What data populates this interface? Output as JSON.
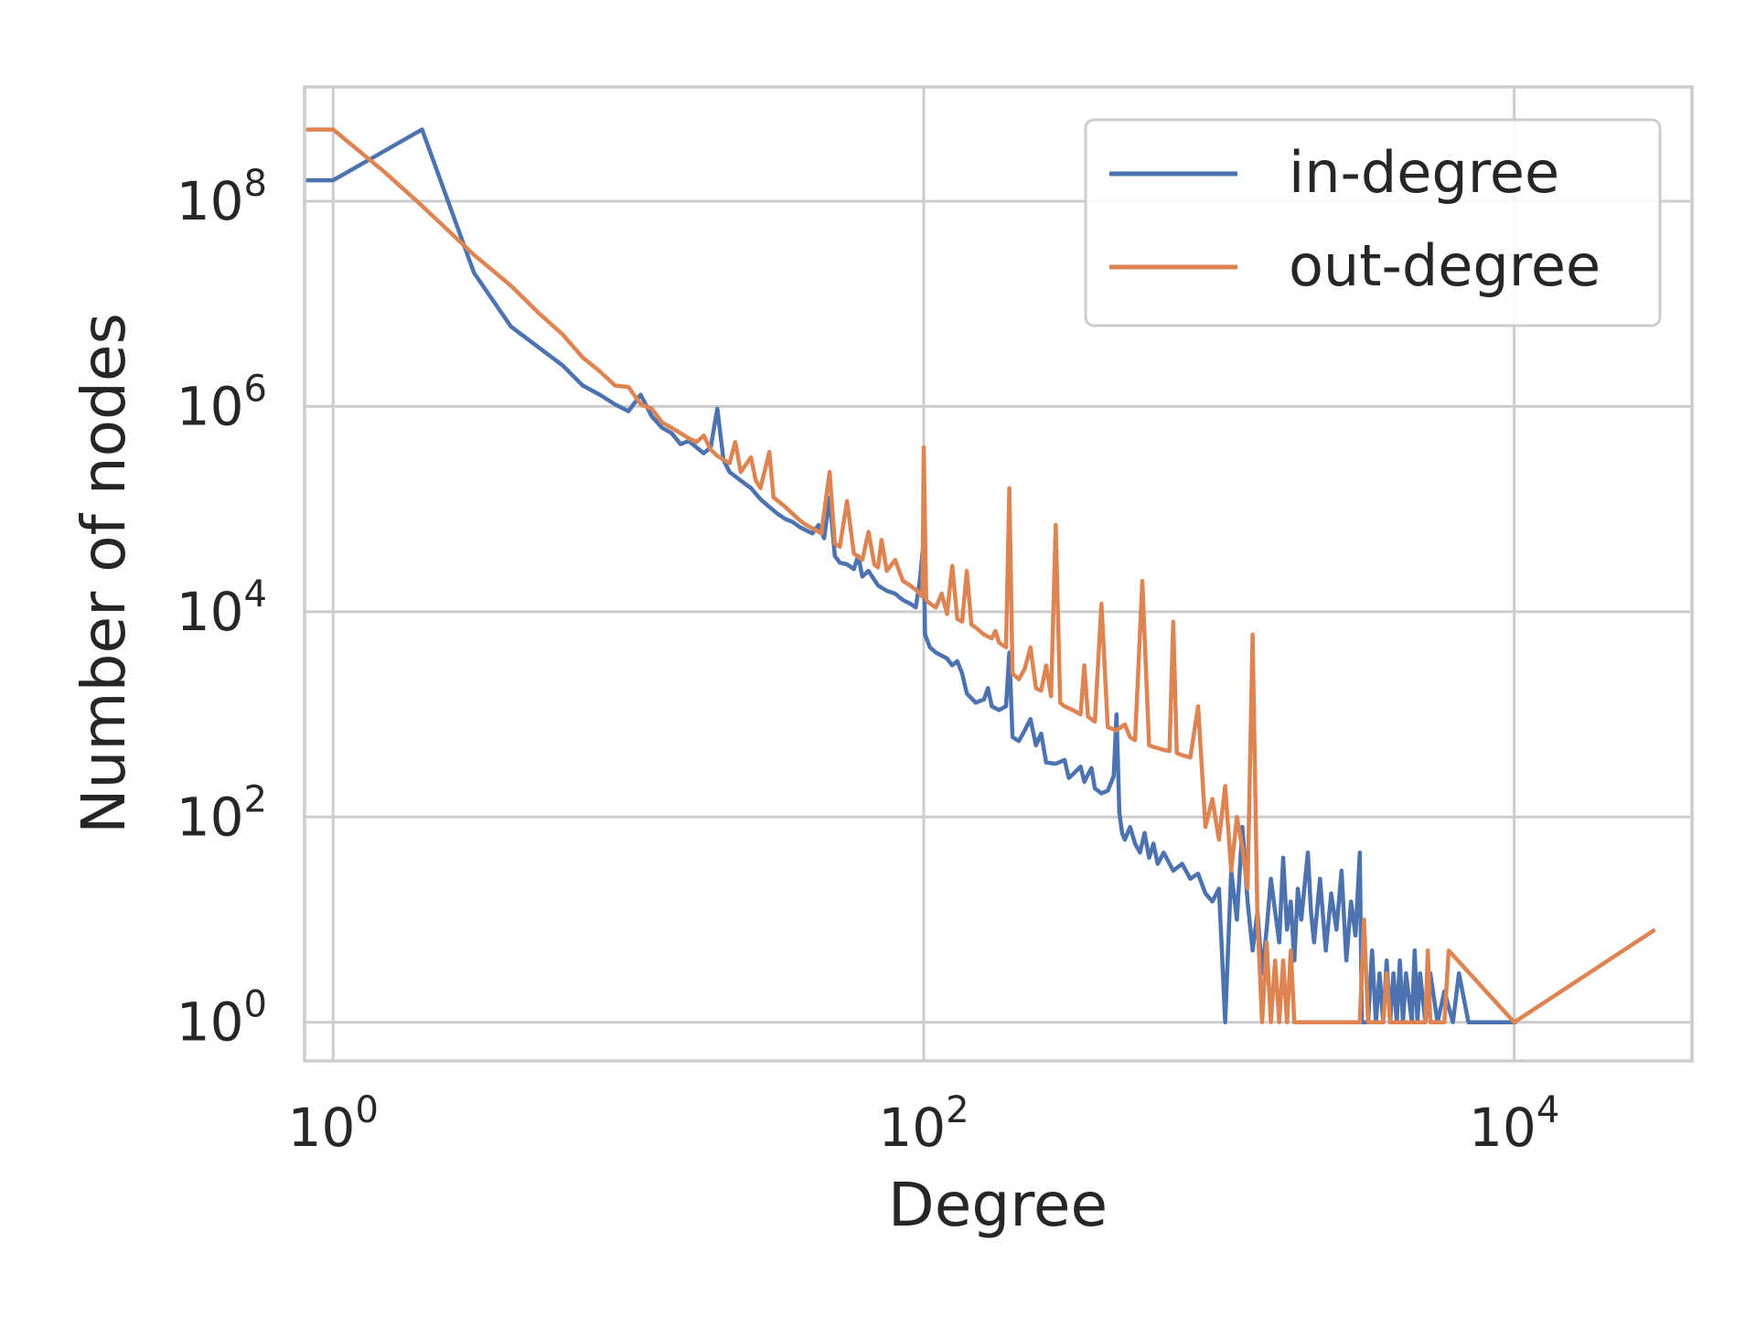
{
  "chart_data": {
    "type": "line",
    "xlabel": "Degree",
    "ylabel": "Number of nodes",
    "x_scale": "log",
    "y_scale": "log",
    "xlim": [
      0.8,
      40000
    ],
    "ylim": [
      0.42,
      1300000000.0
    ],
    "x_ticks": [
      {
        "value": 1,
        "base": "10",
        "exp": "0"
      },
      {
        "value": 100,
        "base": "10",
        "exp": "2"
      },
      {
        "value": 10000,
        "base": "10",
        "exp": "4"
      }
    ],
    "y_ticks": [
      {
        "value": 1,
        "base": "10",
        "exp": "0"
      },
      {
        "value": 100,
        "base": "10",
        "exp": "2"
      },
      {
        "value": 10000,
        "base": "10",
        "exp": "4"
      },
      {
        "value": 1000000,
        "base": "10",
        "exp": "6"
      },
      {
        "value": 100000000,
        "base": "10",
        "exp": "8"
      }
    ],
    "grid": true,
    "legend_position": "top-right",
    "series": [
      {
        "name": "in-degree",
        "color": "#4c72b0",
        "points": [
          [
            0.8,
            160000000.0
          ],
          [
            1,
            160000000.0
          ],
          [
            2,
            500000000.0
          ],
          [
            3,
            20000000.0
          ],
          [
            4,
            6000000.0
          ],
          [
            6,
            2500000.0
          ],
          [
            7,
            1600000.0
          ],
          [
            8,
            1300000.0
          ],
          [
            9,
            1050000.0
          ],
          [
            10,
            900000.0
          ],
          [
            11,
            1300000.0
          ],
          [
            12,
            800000.0
          ],
          [
            13,
            620000.0
          ],
          [
            14,
            550000.0
          ],
          [
            15,
            430000.0
          ],
          [
            16,
            460000.0
          ],
          [
            17,
            400000.0
          ],
          [
            18,
            350000.0
          ],
          [
            19,
            400000.0
          ],
          [
            20,
            950000.0
          ],
          [
            21,
            300000.0
          ],
          [
            22,
            230000.0
          ],
          [
            24,
            190000.0
          ],
          [
            26,
            160000.0
          ],
          [
            28,
            125000.0
          ],
          [
            30,
            105000.0
          ],
          [
            32,
            90000.0
          ],
          [
            34,
            80000.0
          ],
          [
            36,
            75000.0
          ],
          [
            38,
            67000.0
          ],
          [
            40,
            62000.0
          ],
          [
            42,
            58000.0
          ],
          [
            44,
            70000.0
          ],
          [
            46,
            52000.0
          ],
          [
            48,
            130000.0
          ],
          [
            50,
            35000.0
          ],
          [
            52,
            30000.0
          ],
          [
            55,
            29000.0
          ],
          [
            58,
            26000.0
          ],
          [
            60,
            35000.0
          ],
          [
            62,
            22000.0
          ],
          [
            65,
            25000.0
          ],
          [
            70,
            18000.0
          ],
          [
            75,
            16000.0
          ],
          [
            80,
            15000.0
          ],
          [
            85,
            13000.0
          ],
          [
            90,
            12000.0
          ],
          [
            94,
            11000.0
          ],
          [
            97,
            20000.0
          ],
          [
            100,
            50000.0
          ],
          [
            101,
            6000.0
          ],
          [
            105,
            4500.0
          ],
          [
            110,
            4000.0
          ],
          [
            120,
            3500.0
          ],
          [
            125,
            3000.0
          ],
          [
            130,
            3300.0
          ],
          [
            135,
            2500.0
          ],
          [
            140,
            1600.0
          ],
          [
            150,
            1300.0
          ],
          [
            160,
            1400.0
          ],
          [
            165,
            1800.0
          ],
          [
            170,
            1200.0
          ],
          [
            180,
            1100.0
          ],
          [
            190,
            1200.0
          ],
          [
            195,
            4000.0
          ],
          [
            200,
            600
          ],
          [
            210,
            550
          ],
          [
            220,
            700
          ],
          [
            230,
            900
          ],
          [
            240,
            500
          ],
          [
            250,
            650
          ],
          [
            260,
            340
          ],
          [
            280,
            330
          ],
          [
            300,
            360
          ],
          [
            310,
            240
          ],
          [
            320,
            260
          ],
          [
            340,
            310
          ],
          [
            350,
            220
          ],
          [
            360,
            260
          ],
          [
            370,
            300
          ],
          [
            380,
            190
          ],
          [
            400,
            170
          ],
          [
            420,
            180
          ],
          [
            440,
            250
          ],
          [
            450,
            1000
          ],
          [
            460,
            110
          ],
          [
            470,
            70
          ],
          [
            480,
            60
          ],
          [
            500,
            80
          ],
          [
            520,
            55
          ],
          [
            540,
            45
          ],
          [
            560,
            70
          ],
          [
            580,
            40
          ],
          [
            600,
            55
          ],
          [
            620,
            35
          ],
          [
            650,
            45
          ],
          [
            700,
            30
          ],
          [
            750,
            35
          ],
          [
            800,
            25
          ],
          [
            850,
            28
          ],
          [
            900,
            18
          ],
          [
            950,
            15
          ],
          [
            1000,
            20
          ],
          [
            1050,
            1
          ],
          [
            1100,
            30
          ],
          [
            1150,
            10
          ],
          [
            1200,
            80
          ],
          [
            1250,
            15
          ],
          [
            1300,
            5
          ],
          [
            1350,
            12
          ],
          [
            1400,
            3
          ],
          [
            1450,
            8
          ],
          [
            1500,
            25
          ],
          [
            1550,
            12
          ],
          [
            1600,
            6
          ],
          [
            1650,
            40
          ],
          [
            1700,
            8
          ],
          [
            1750,
            15
          ],
          [
            1800,
            4
          ],
          [
            1850,
            20
          ],
          [
            1900,
            10
          ],
          [
            2000,
            45
          ],
          [
            2050,
            12
          ],
          [
            2100,
            6
          ],
          [
            2200,
            25
          ],
          [
            2300,
            5
          ],
          [
            2400,
            18
          ],
          [
            2500,
            8
          ],
          [
            2600,
            30
          ],
          [
            2700,
            4
          ],
          [
            2800,
            15
          ],
          [
            2900,
            7
          ],
          [
            3000,
            45
          ],
          [
            3050,
            1
          ],
          [
            3200,
            1
          ],
          [
            3300,
            5
          ],
          [
            3400,
            1
          ],
          [
            3500,
            3
          ],
          [
            3600,
            1
          ],
          [
            3700,
            4
          ],
          [
            3800,
            1
          ],
          [
            3900,
            3
          ],
          [
            4000,
            1
          ],
          [
            4100,
            4
          ],
          [
            4200,
            1
          ],
          [
            4300,
            3
          ],
          [
            4500,
            1
          ],
          [
            4600,
            5
          ],
          [
            4700,
            1
          ],
          [
            4800,
            3
          ],
          [
            5000,
            1
          ],
          [
            5200,
            3
          ],
          [
            5500,
            1
          ],
          [
            5800,
            2
          ],
          [
            6200,
            1
          ],
          [
            6500,
            3
          ],
          [
            7000,
            1
          ],
          [
            8000,
            1
          ],
          [
            10000,
            1
          ],
          [
            10200,
            1
          ]
        ]
      },
      {
        "name": "out-degree",
        "color": "#dd8452",
        "points": [
          [
            0.8,
            500000000.0
          ],
          [
            1,
            500000000.0
          ],
          [
            1.5,
            190000000.0
          ],
          [
            2,
            90000000.0
          ],
          [
            3,
            30000000.0
          ],
          [
            4,
            15000000.0
          ],
          [
            5,
            8000000.0
          ],
          [
            6,
            5000000.0
          ],
          [
            7,
            3000000.0
          ],
          [
            8,
            2200000.0
          ],
          [
            9,
            1600000.0
          ],
          [
            10,
            1550000.0
          ],
          [
            11,
            1050000.0
          ],
          [
            12,
            950000.0
          ],
          [
            13,
            700000.0
          ],
          [
            14,
            620000.0
          ],
          [
            15,
            550000.0
          ],
          [
            16,
            490000.0
          ],
          [
            17,
            450000.0
          ],
          [
            18,
            520000.0
          ],
          [
            19,
            380000.0
          ],
          [
            20,
            330000.0
          ],
          [
            22,
            280000.0
          ],
          [
            23,
            450000.0
          ],
          [
            24,
            230000.0
          ],
          [
            26,
            320000.0
          ],
          [
            27,
            190000.0
          ],
          [
            28,
            160000.0
          ],
          [
            30,
            360000.0
          ],
          [
            31,
            130000.0
          ],
          [
            34,
            105000.0
          ],
          [
            36,
            90000.0
          ],
          [
            38,
            78000.0
          ],
          [
            40,
            70000.0
          ],
          [
            42,
            65000.0
          ],
          [
            45,
            58000.0
          ],
          [
            48,
            230000.0
          ],
          [
            50,
            46000.0
          ],
          [
            52,
            43000.0
          ],
          [
            55,
            120000.0
          ],
          [
            58,
            37000.0
          ],
          [
            62,
            32000.0
          ],
          [
            65,
            60000.0
          ],
          [
            68,
            29000.0
          ],
          [
            70,
            27000.0
          ],
          [
            72,
            50000.0
          ],
          [
            75,
            25000.0
          ],
          [
            80,
            32000.0
          ],
          [
            85,
            20000.0
          ],
          [
            90,
            18000.0
          ],
          [
            95,
            16000.0
          ],
          [
            99,
            14000.0
          ],
          [
            100,
            400000.0
          ],
          [
            102,
            13000.0
          ],
          [
            105,
            12000.0
          ],
          [
            110,
            11000.0
          ],
          [
            115,
            15000.0
          ],
          [
            120,
            9500.0
          ],
          [
            125,
            28000.0
          ],
          [
            130,
            8500.0
          ],
          [
            135,
            8000.0
          ],
          [
            140,
            25000.0
          ],
          [
            145,
            7500.0
          ],
          [
            150,
            7000.0
          ],
          [
            160,
            6000.0
          ],
          [
            170,
            5500.0
          ],
          [
            175,
            6500.0
          ],
          [
            180,
            5000.0
          ],
          [
            190,
            4500.0
          ],
          [
            195,
            160000.0
          ],
          [
            200,
            2500.0
          ],
          [
            210,
            2200.0
          ],
          [
            220,
            2800.0
          ],
          [
            230,
            4500.0
          ],
          [
            240,
            1800.0
          ],
          [
            250,
            1700.0
          ],
          [
            260,
            3000.0
          ],
          [
            270,
            1500.0
          ],
          [
            280,
            70000.0
          ],
          [
            290,
            1300.0
          ],
          [
            300,
            1200.0
          ],
          [
            320,
            1100.0
          ],
          [
            340,
            1000.0
          ],
          [
            350,
            3000.0
          ],
          [
            360,
            950
          ],
          [
            380,
            850
          ],
          [
            400,
            12000.0
          ],
          [
            420,
            750
          ],
          [
            450,
            700
          ],
          [
            480,
            800
          ],
          [
            500,
            600
          ],
          [
            520,
            560
          ],
          [
            550,
            20000.0
          ],
          [
            580,
            500
          ],
          [
            600,
            480
          ],
          [
            620,
            470
          ],
          [
            650,
            450
          ],
          [
            680,
            440
          ],
          [
            700,
            8000.0
          ],
          [
            720,
            420
          ],
          [
            750,
            400
          ],
          [
            800,
            380
          ],
          [
            850,
            1200
          ],
          [
            900,
            80
          ],
          [
            950,
            150
          ],
          [
            1000,
            60
          ],
          [
            1050,
            200
          ],
          [
            1100,
            30
          ],
          [
            1150,
            100
          ],
          [
            1200,
            50
          ],
          [
            1250,
            20
          ],
          [
            1300,
            6000.0
          ],
          [
            1350,
            10
          ],
          [
            1400,
            1
          ],
          [
            1450,
            6
          ],
          [
            1500,
            1
          ],
          [
            1550,
            4
          ],
          [
            1600,
            1
          ],
          [
            1650,
            4
          ],
          [
            1700,
            1
          ],
          [
            1750,
            5
          ],
          [
            1800,
            1
          ],
          [
            3000,
            1
          ],
          [
            3100,
            10
          ],
          [
            3200,
            1
          ],
          [
            3600,
            1
          ],
          [
            3700,
            3
          ],
          [
            3800,
            1
          ],
          [
            5000,
            1
          ],
          [
            5100,
            5
          ],
          [
            5200,
            1
          ],
          [
            5800,
            1
          ],
          [
            6000,
            5
          ],
          [
            10000,
            1
          ],
          [
            30000,
            8
          ]
        ]
      }
    ]
  }
}
